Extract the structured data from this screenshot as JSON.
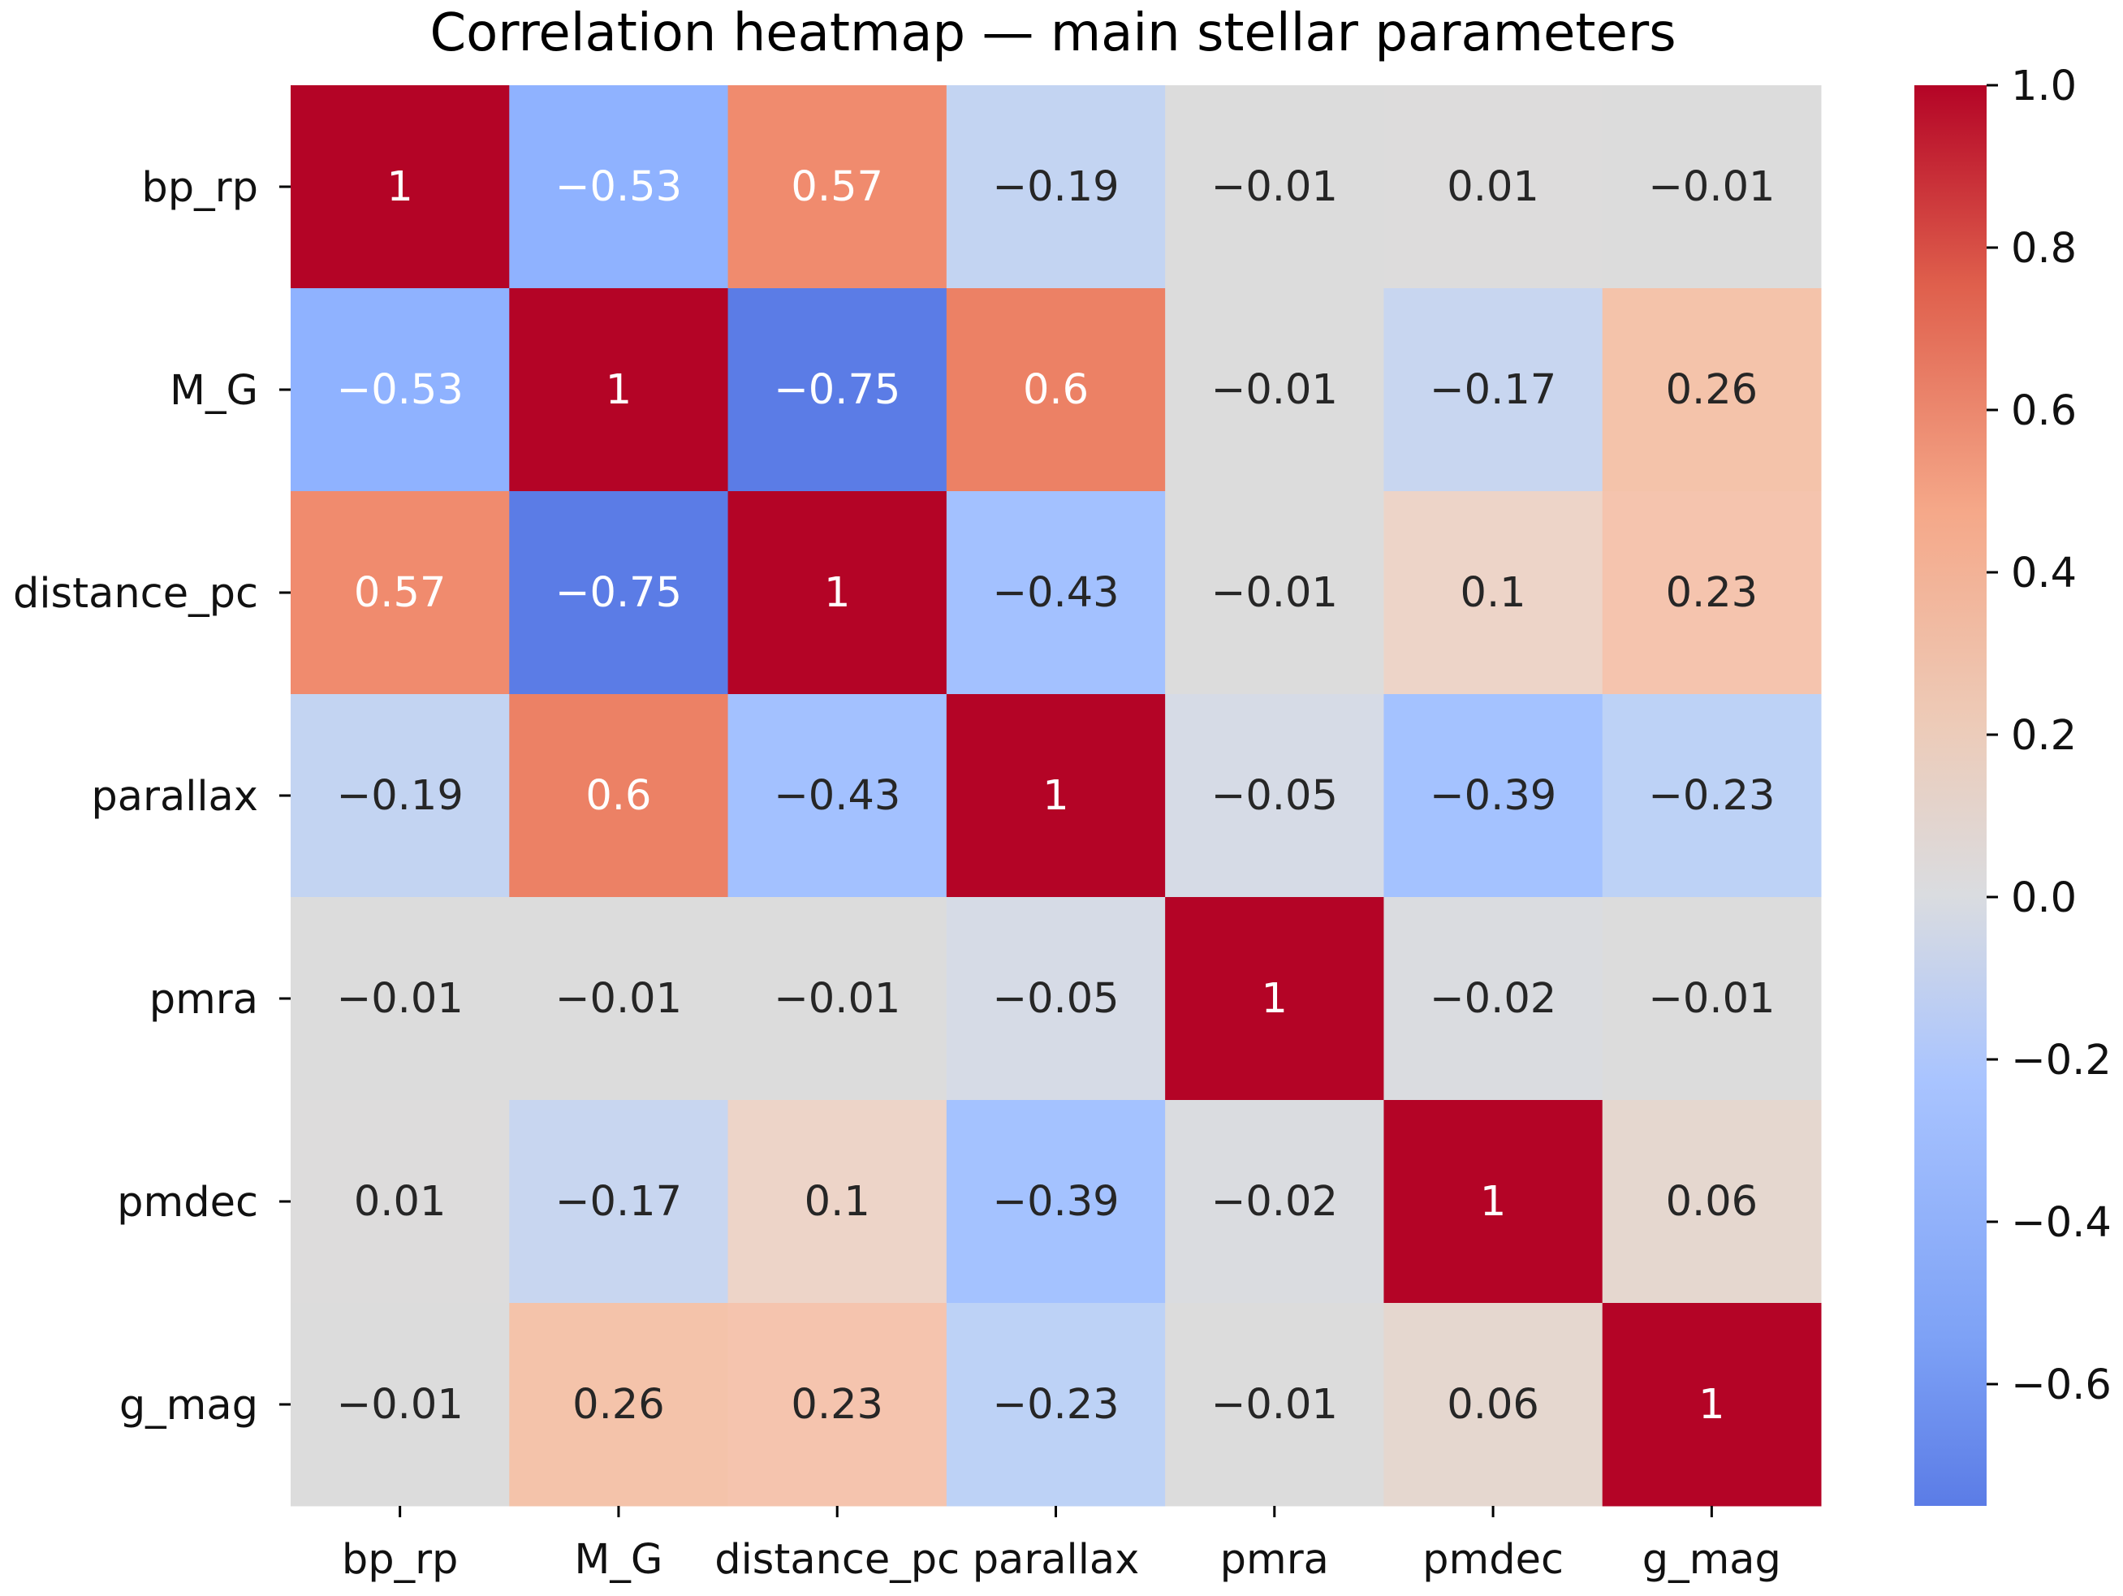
{
  "chart_data": {
    "type": "heatmap",
    "title": "Correlation heatmap — main stellar parameters",
    "xlabel": "",
    "ylabel": "",
    "x_labels": [
      "bp_rp",
      "M_G",
      "distance_pc",
      "parallax",
      "pmra",
      "pmdec",
      "g_mag"
    ],
    "y_labels": [
      "bp_rp",
      "M_G",
      "distance_pc",
      "parallax",
      "pmra",
      "pmdec",
      "g_mag"
    ],
    "values": [
      [
        1,
        -0.53,
        0.57,
        -0.19,
        -0.01,
        0.01,
        -0.01
      ],
      [
        -0.53,
        1,
        -0.75,
        0.6,
        -0.01,
        -0.17,
        0.26
      ],
      [
        0.57,
        -0.75,
        1,
        -0.43,
        -0.01,
        0.1,
        0.23
      ],
      [
        -0.19,
        0.6,
        -0.43,
        1,
        -0.05,
        -0.39,
        -0.23
      ],
      [
        -0.01,
        -0.01,
        -0.01,
        -0.05,
        1,
        -0.02,
        -0.01
      ],
      [
        0.01,
        -0.17,
        0.1,
        -0.39,
        -0.02,
        1,
        0.06
      ],
      [
        -0.01,
        0.26,
        0.23,
        -0.23,
        -0.01,
        0.06,
        1
      ]
    ],
    "colormap": "coolwarm",
    "vmin": -0.75,
    "vmax": 1,
    "colorbar": {
      "ticks": [
        1.0,
        0.8,
        0.6,
        0.4,
        0.2,
        0.0,
        -0.2,
        -0.4,
        -0.6
      ],
      "tick_labels": [
        "1.0",
        "0.8",
        "0.6",
        "0.4",
        "0.2",
        "0.0",
        "−0.2",
        "−0.4",
        "−0.6"
      ]
    }
  }
}
